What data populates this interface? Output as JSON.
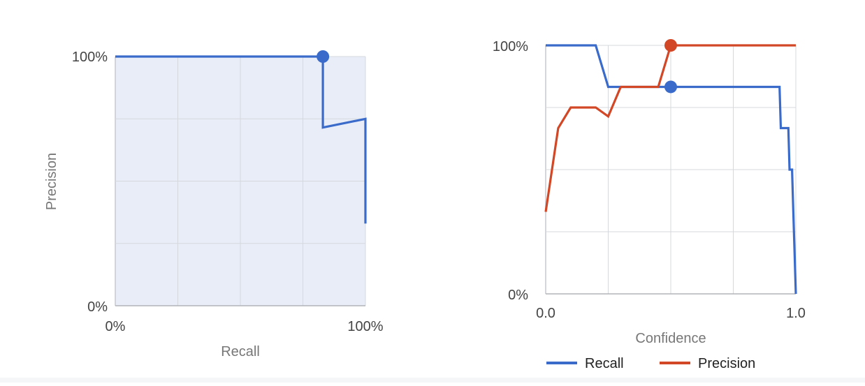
{
  "chart_data": [
    {
      "type": "line",
      "xlabel": "Recall",
      "ylabel": "Precision",
      "xlim": [
        0,
        100
      ],
      "ylim": [
        0,
        100
      ],
      "x_tick_labels": [
        "0%",
        "100%"
      ],
      "y_tick_labels": [
        "0%",
        "100%"
      ],
      "grid": true,
      "area_fill": true,
      "series": [
        {
          "color": "#3a6bcb",
          "x": [
            0,
            83,
            83,
            100,
            100
          ],
          "y": [
            100,
            100,
            71.5,
            75,
            33
          ]
        }
      ],
      "highlight_point": {
        "x": 83,
        "y": 100,
        "color": "#3a6bcb"
      }
    },
    {
      "type": "line",
      "xlabel": "Confidence",
      "ylabel": "",
      "xlim": [
        0,
        1
      ],
      "ylim": [
        0,
        100
      ],
      "x_tick_labels": [
        "0.0",
        "1.0"
      ],
      "y_tick_labels": [
        "0%",
        "100%"
      ],
      "grid": true,
      "legend_position": "bottom",
      "series": [
        {
          "name": "Recall",
          "color": "#3a6bcb",
          "x": [
            0,
            0.2,
            0.25,
            0.5,
            0.935,
            0.94,
            0.97,
            0.975,
            0.985,
            0.99,
            0.995,
            1.0
          ],
          "y": [
            100,
            100,
            83.3,
            83.3,
            83.3,
            66.7,
            66.7,
            50,
            50,
            33,
            16.7,
            0
          ]
        },
        {
          "name": "Precision",
          "color": "#d24726",
          "x": [
            0,
            0.05,
            0.1,
            0.2,
            0.25,
            0.3,
            0.45,
            0.5,
            1.0
          ],
          "y": [
            33,
            66.7,
            75,
            75,
            71.4,
            83.3,
            83.3,
            100,
            100
          ]
        }
      ],
      "highlight_points": [
        {
          "x": 0.5,
          "y": 100,
          "color": "#d24726"
        },
        {
          "x": 0.5,
          "y": 83.3,
          "color": "#3a6bcb"
        }
      ]
    }
  ]
}
